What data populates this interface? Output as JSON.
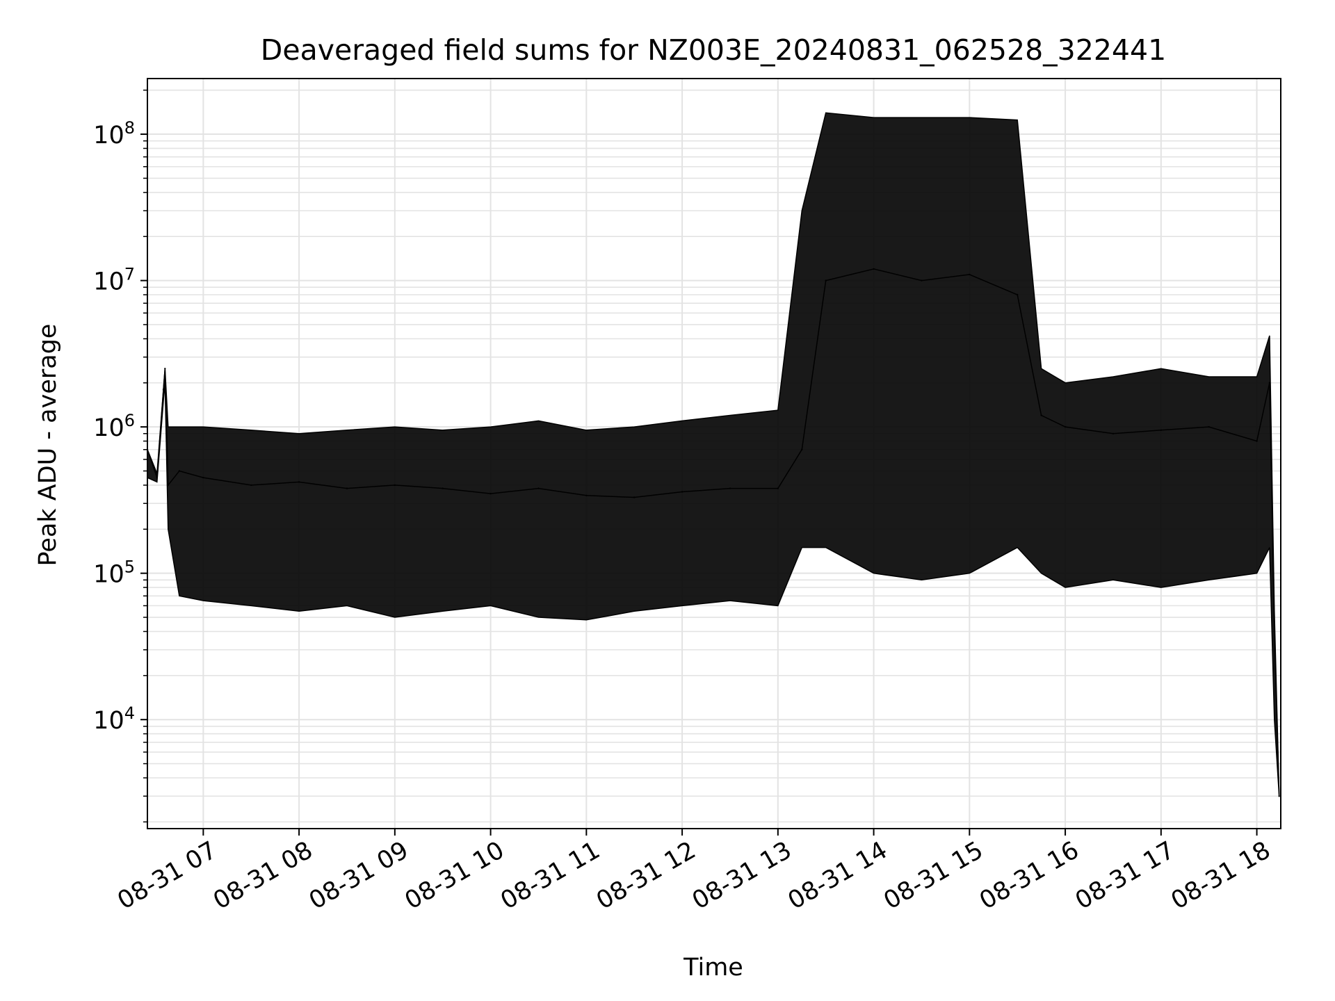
{
  "chart_data": {
    "type": "line",
    "title": "Deaveraged field sums for NZ003E_20240831_062528_322441",
    "xlabel": "Time",
    "ylabel": "Peak ADU - average",
    "yscale": "log",
    "xlim": [
      "2024-08-31 06:25",
      "2024-08-31 18:15"
    ],
    "ylim": [
      1800,
      240000000
    ],
    "grid": true,
    "x_tick_labels": [
      "08-31 07",
      "08-31 08",
      "08-31 09",
      "08-31 10",
      "08-31 11",
      "08-31 12",
      "08-31 13",
      "08-31 14",
      "08-31 15",
      "08-31 16",
      "08-31 17",
      "08-31 18"
    ],
    "y_ticks": [
      {
        "base": "10",
        "exp": "4",
        "value": 10000
      },
      {
        "base": "10",
        "exp": "5",
        "value": 100000
      },
      {
        "base": "10",
        "exp": "6",
        "value": 1000000
      },
      {
        "base": "10",
        "exp": "7",
        "value": 10000000
      },
      {
        "base": "10",
        "exp": "8",
        "value": 100000000
      }
    ],
    "line_color": "#000000",
    "series": [
      {
        "x": [
          "2024-08-31 06:25",
          "2024-08-31 06:31",
          "2024-08-31 06:35",
          "2024-08-31 06:36",
          "2024-08-31 06:38",
          "2024-08-31 06:45",
          "2024-08-31 07:00",
          "2024-08-31 07:30",
          "2024-08-31 08:00",
          "2024-08-31 08:30",
          "2024-08-31 09:00",
          "2024-08-31 09:30",
          "2024-08-31 10:00",
          "2024-08-31 10:30",
          "2024-08-31 11:00",
          "2024-08-31 11:30",
          "2024-08-31 12:00",
          "2024-08-31 12:30",
          "2024-08-31 13:00",
          "2024-08-31 13:15",
          "2024-08-31 13:30",
          "2024-08-31 14:00",
          "2024-08-31 14:30",
          "2024-08-31 15:00",
          "2024-08-31 15:30",
          "2024-08-31 15:45",
          "2024-08-31 16:00",
          "2024-08-31 16:30",
          "2024-08-31 17:00",
          "2024-08-31 17:30",
          "2024-08-31 18:00",
          "2024-08-31 18:08",
          "2024-08-31 18:11",
          "2024-08-31 18:14"
        ],
        "y": [
          700000,
          450000,
          1800000,
          2500000,
          400000,
          500000,
          450000,
          400000,
          420000,
          380000,
          400000,
          380000,
          350000,
          380000,
          340000,
          330000,
          360000,
          380000,
          380000,
          700000,
          10000000,
          12000000,
          10000000,
          11000000,
          8000000,
          1200000,
          1000000,
          900000,
          950000,
          1000000,
          800000,
          2000000,
          40000,
          3000
        ],
        "upper": [
          700000,
          480000,
          1800000,
          2500000,
          1000000,
          1000000,
          1000000,
          950000,
          900000,
          950000,
          1000000,
          950000,
          1000000,
          1100000,
          950000,
          1000000,
          1100000,
          1200000,
          1300000,
          30000000,
          140000000,
          130000000,
          130000000,
          130000000,
          125000000,
          2500000,
          2000000,
          2200000,
          2500000,
          2200000,
          2200000,
          4200000,
          55000,
          3000
        ],
        "lower": [
          450000,
          420000,
          1500000,
          2000000,
          200000,
          70000,
          65000,
          60000,
          55000,
          60000,
          50000,
          55000,
          60000,
          50000,
          48000,
          55000,
          60000,
          65000,
          60000,
          150000,
          150000,
          100000,
          90000,
          100000,
          150000,
          100000,
          80000,
          90000,
          80000,
          90000,
          100000,
          150000,
          10000,
          3000
        ]
      }
    ]
  }
}
